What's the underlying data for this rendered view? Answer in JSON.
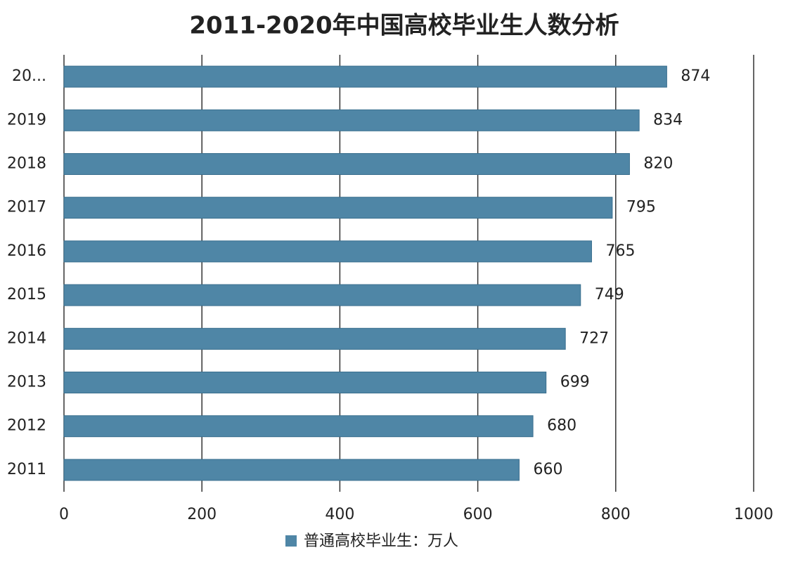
{
  "chart_data": {
    "type": "hbar",
    "title": "2011-2020年中国高校毕业生人数分析",
    "categories": [
      "20...",
      "2019",
      "2018",
      "2017",
      "2016",
      "2015",
      "2014",
      "2013",
      "2012",
      "2011"
    ],
    "series": [
      {
        "name": "普通高校毕业生：万人",
        "color": "#4f86a6",
        "values": [
          874,
          834,
          820,
          795,
          765,
          749,
          727,
          699,
          680,
          660
        ]
      }
    ],
    "xlim": [
      0,
      1000
    ],
    "xticks": [
      0,
      200,
      400,
      600,
      800,
      1000
    ],
    "grid": true,
    "legend": "bottom"
  }
}
